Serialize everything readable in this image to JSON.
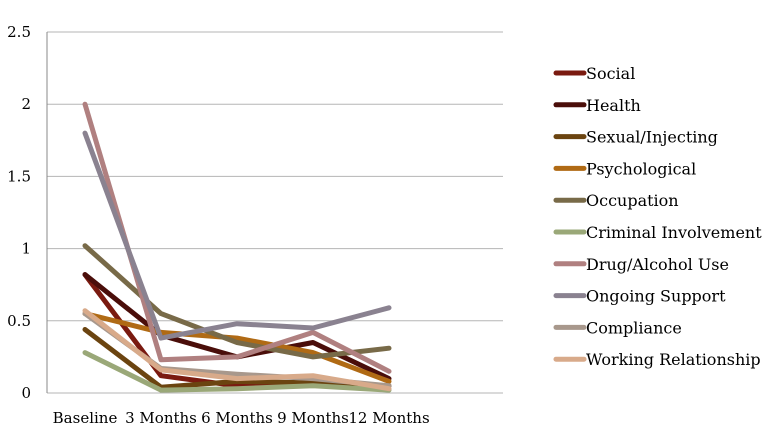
{
  "chart_data": {
    "type": "line",
    "title": "",
    "xlabel": "",
    "ylabel": "",
    "categories": [
      "Baseline",
      "3 Months",
      "6 Months",
      "9 Months",
      "12 Months"
    ],
    "ylim": [
      0,
      2.5
    ],
    "y_ticks": [
      "0",
      "0.5",
      "1",
      "1.5",
      "2",
      "2.5"
    ],
    "grid": true,
    "legend_position": "right",
    "series": [
      {
        "name": "Social",
        "color": "#7a1a10",
        "values": [
          0.82,
          0.12,
          0.05,
          0.07,
          0.05
        ]
      },
      {
        "name": "Health",
        "color": "#4a0e0a",
        "values": [
          0.82,
          0.4,
          0.25,
          0.35,
          0.1
        ]
      },
      {
        "name": "Sexual/Injecting",
        "color": "#6b4410",
        "values": [
          0.44,
          0.04,
          0.08,
          0.07,
          0.05
        ]
      },
      {
        "name": "Psychological",
        "color": "#b06a14",
        "values": [
          0.55,
          0.42,
          0.38,
          0.28,
          0.08
        ]
      },
      {
        "name": "Occupation",
        "color": "#786a48",
        "values": [
          1.02,
          0.55,
          0.35,
          0.25,
          0.31
        ]
      },
      {
        "name": "Criminal Involvement",
        "color": "#9aa878",
        "values": [
          0.28,
          0.02,
          0.03,
          0.05,
          0.02
        ]
      },
      {
        "name": "Drug/Alcohol Use",
        "color": "#b08080",
        "values": [
          2.0,
          0.23,
          0.25,
          0.42,
          0.15
        ]
      },
      {
        "name": "Ongoing Support",
        "color": "#8a8290",
        "values": [
          1.8,
          0.38,
          0.48,
          0.45,
          0.59
        ]
      },
      {
        "name": "Compliance",
        "color": "#a8988c",
        "values": [
          0.55,
          0.17,
          0.13,
          0.1,
          0.05
        ]
      },
      {
        "name": "Working Relationship",
        "color": "#d8aa8a",
        "values": [
          0.57,
          0.16,
          0.1,
          0.12,
          0.03
        ]
      }
    ]
  }
}
